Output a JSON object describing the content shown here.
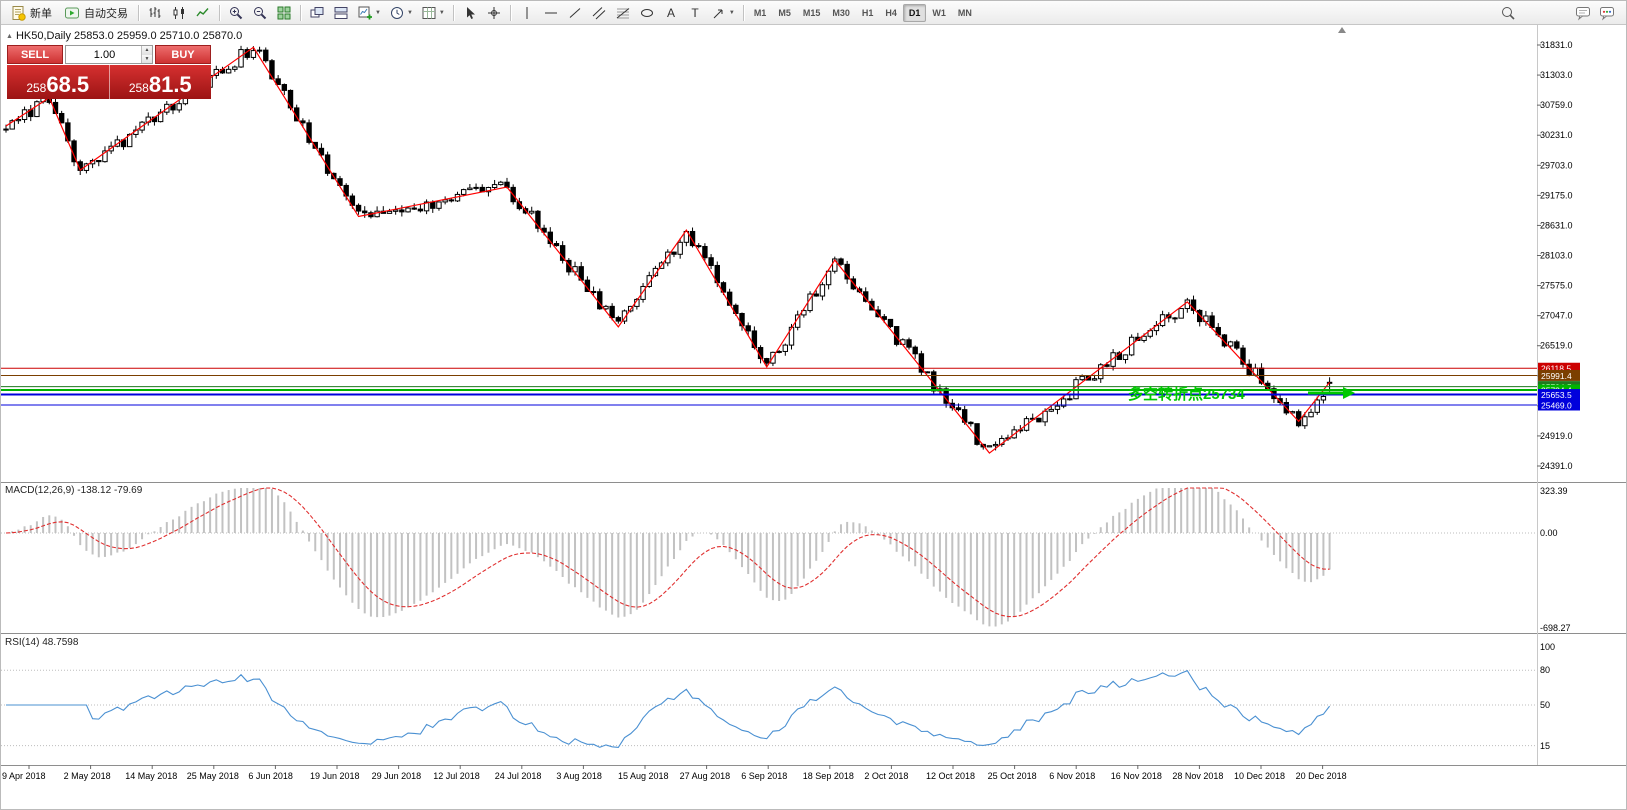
{
  "toolbar": {
    "new_order_label": "新单",
    "auto_trading_label": "自动交易",
    "timeframes": [
      "M1",
      "M5",
      "M15",
      "M30",
      "H1",
      "H4",
      "D1",
      "W1",
      "MN"
    ],
    "active_timeframe": "D1"
  },
  "trade_panel": {
    "sell_label": "SELL",
    "buy_label": "BUY",
    "volume": "1.00",
    "sell_price": "25868.5",
    "buy_price": "25881.5"
  },
  "chart": {
    "symbol_label": "HK50,Daily 25853.0 25959.0 25710.0 25870.0",
    "price_axis_ticks": [
      "31831.0",
      "31303.0",
      "30759.0",
      "30231.0",
      "29703.0",
      "29175.0",
      "28631.0",
      "28103.0",
      "27575.0",
      "27047.0",
      "26519.0",
      "25991.0",
      "25463.0",
      "24919.0",
      "24391.0"
    ],
    "hlines": [
      {
        "label": "26118.5",
        "price": 26118.5,
        "color": "#cc0000",
        "width": 1
      },
      {
        "label": "25991.4",
        "price": 25991.4,
        "color": "#7b3f00",
        "width": 1
      },
      {
        "label": "25794.5",
        "price": 25794.5,
        "color": "#1f7a1f",
        "width": 1
      },
      {
        "label": "25734.4",
        "price": 25734.4,
        "color": "#00b400",
        "width": 2
      },
      {
        "label": "25653.5",
        "price": 25653.5,
        "color": "#0000dc",
        "width": 2
      },
      {
        "label": "25469.0",
        "price": 25469.0,
        "color": "#0000dc",
        "width": 1
      }
    ],
    "annotation": {
      "text": "多空转折点25734",
      "color": "#00c800"
    }
  },
  "macd": {
    "label": "MACD(12,26,9) -138.12 -79.69",
    "ticks": [
      "323.39",
      "0.00",
      "-698.27"
    ]
  },
  "rsi": {
    "label": "RSI(14) 48.7598",
    "ticks": [
      "100",
      "80",
      "50",
      "15"
    ]
  },
  "date_axis": [
    "9 Apr 2018",
    "2 May 2018",
    "14 May 2018",
    "25 May 2018",
    "6 Jun 2018",
    "19 Jun 2018",
    "29 Jun 2018",
    "12 Jul 2018",
    "24 Jul 2018",
    "3 Aug 2018",
    "15 Aug 2018",
    "27 Aug 2018",
    "6 Sep 2018",
    "18 Sep 2018",
    "2 Oct 2018",
    "12 Oct 2018",
    "25 Oct 2018",
    "6 Nov 2018",
    "16 Nov 2018",
    "28 Nov 2018",
    "10 Dec 2018",
    "20 Dec 2018"
  ],
  "chart_data": {
    "type": "candlestick",
    "symbol": "HK50",
    "period": "Daily",
    "last_ohlc": {
      "open": 25853.0,
      "high": 25959.0,
      "low": 25710.0,
      "close": 25870.0
    },
    "price_axis_range": [
      24391.0,
      31831.0
    ],
    "bars_visible": 215,
    "zigzag_pivots": [
      {
        "bar": 0,
        "price": 30400
      },
      {
        "bar": 7,
        "price": 30900
      },
      {
        "bar": 12,
        "price": 29620
      },
      {
        "bar": 40,
        "price": 31790
      },
      {
        "bar": 57,
        "price": 28800
      },
      {
        "bar": 81,
        "price": 29320
      },
      {
        "bar": 99,
        "price": 26850
      },
      {
        "bar": 110,
        "price": 28560
      },
      {
        "bar": 123,
        "price": 26140
      },
      {
        "bar": 134,
        "price": 28030
      },
      {
        "bar": 159,
        "price": 24620
      },
      {
        "bar": 191,
        "price": 27290
      },
      {
        "bar": 209,
        "price": 25180
      },
      {
        "bar": 214,
        "price": 25870
      }
    ],
    "horizontal_levels": [
      26118.5,
      25991.4,
      25794.5,
      25734.4,
      25653.5,
      25469.0
    ],
    "macd": {
      "fast": 12,
      "slow": 26,
      "signal": 9,
      "current_macd": -138.12,
      "current_signal": -79.69,
      "scale_max": 323.39,
      "scale_min": -698.27
    },
    "rsi": {
      "period": 14,
      "current": 48.7598
    }
  }
}
